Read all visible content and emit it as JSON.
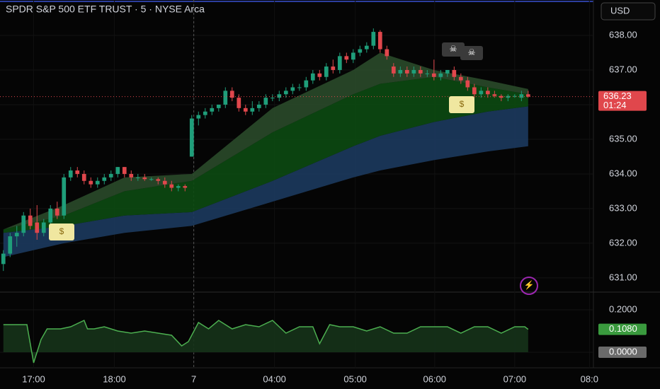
{
  "chart_data": {
    "type": "candlestick",
    "title": "SPDR S&P 500 ETF TRUST · 5 · NYSE Arca",
    "currency": "USD",
    "up_color": "#1f9e7a",
    "down_color": "#e0474c",
    "xlim": [
      -0.5,
      87.7
    ],
    "xticks": [
      {
        "value": 4.5,
        "label": "17:00"
      },
      {
        "value": 16.5,
        "label": "18:00"
      },
      {
        "value": 28.3,
        "label": "7"
      },
      {
        "value": 40.3,
        "label": "04:00"
      },
      {
        "value": 52.3,
        "label": "05:00"
      },
      {
        "value": 64.1,
        "label": "06:00"
      },
      {
        "value": 76,
        "label": "07:00"
      },
      {
        "value": 87.1,
        "label": "08:0"
      }
    ],
    "ylim": [
      630.59,
      639.02
    ],
    "yticks": [
      {
        "value": 638,
        "label": "638.00"
      },
      {
        "value": 637,
        "label": "637.00"
      },
      {
        "value": 636,
        "label": "636.00"
      },
      {
        "value": 635,
        "label": "635.00"
      },
      {
        "value": 634,
        "label": "634.00"
      },
      {
        "value": 633,
        "label": "633.00"
      },
      {
        "value": 632,
        "label": "632.00"
      },
      {
        "value": 631,
        "label": "631.00"
      }
    ],
    "last_price": {
      "value": 636.23,
      "label": "636.23"
    },
    "countdown": "01:24",
    "candles": [
      [
        631.4,
        631.8,
        631.2,
        631.7
      ],
      [
        631.7,
        632.3,
        631.6,
        632.2
      ],
      [
        632.2,
        632.5,
        631.9,
        632.3
      ],
      [
        632.3,
        632.9,
        632.2,
        632.8
      ],
      [
        632.8,
        633.0,
        632.4,
        632.5
      ],
      [
        632.6,
        633.1,
        632.1,
        632.3
      ],
      [
        632.3,
        632.7,
        632.2,
        632.6
      ],
      [
        632.6,
        633.1,
        632.5,
        633.0
      ],
      [
        633.0,
        633.2,
        632.7,
        632.8
      ],
      [
        632.8,
        634.0,
        632.7,
        633.9
      ],
      [
        633.9,
        634.2,
        633.8,
        634.1
      ],
      [
        634.1,
        634.2,
        633.9,
        634.0
      ],
      [
        634.0,
        634.1,
        633.7,
        633.8
      ],
      [
        633.8,
        633.9,
        633.6,
        633.7
      ],
      [
        633.7,
        633.9,
        633.6,
        633.8
      ],
      [
        633.8,
        634.0,
        633.7,
        633.9
      ],
      [
        633.9,
        634.1,
        633.8,
        634.0
      ],
      [
        634.0,
        634.2,
        633.9,
        634.2
      ],
      [
        634.2,
        634.2,
        633.9,
        634.0
      ],
      [
        634.0,
        634.1,
        633.8,
        633.9
      ],
      [
        633.9,
        634.0,
        633.8,
        633.9
      ],
      [
        633.9,
        634.0,
        633.8,
        633.85
      ],
      [
        633.85,
        633.9,
        633.8,
        633.85
      ],
      [
        633.85,
        633.9,
        633.7,
        633.8
      ],
      [
        633.8,
        633.9,
        633.6,
        633.7
      ],
      [
        633.7,
        633.8,
        633.5,
        633.6
      ],
      [
        633.6,
        633.7,
        633.5,
        633.65
      ],
      [
        633.65,
        633.7,
        633.5,
        633.6
      ],
      [
        634.5,
        635.7,
        634.5,
        635.6
      ],
      [
        635.6,
        635.8,
        635.4,
        635.7
      ],
      [
        635.7,
        635.9,
        635.6,
        635.8
      ],
      [
        635.8,
        636.0,
        635.7,
        635.9
      ],
      [
        635.9,
        636.0,
        635.8,
        636.0
      ],
      [
        636.0,
        636.5,
        635.9,
        636.4
      ],
      [
        636.4,
        636.5,
        636.1,
        636.2
      ],
      [
        636.2,
        636.3,
        635.8,
        635.9
      ],
      [
        635.9,
        636.0,
        635.7,
        635.8
      ],
      [
        635.8,
        636.1,
        635.7,
        635.9
      ],
      [
        635.9,
        636.1,
        635.8,
        636.0
      ],
      [
        636.0,
        636.3,
        635.9,
        636.2
      ],
      [
        636.2,
        636.3,
        636.1,
        636.2
      ],
      [
        636.2,
        636.4,
        636.1,
        636.3
      ],
      [
        636.3,
        636.5,
        636.2,
        636.4
      ],
      [
        636.4,
        636.6,
        636.3,
        636.5
      ],
      [
        636.5,
        636.6,
        636.4,
        636.5
      ],
      [
        636.5,
        636.8,
        636.4,
        636.7
      ],
      [
        636.7,
        637.0,
        636.6,
        636.9
      ],
      [
        636.9,
        637.0,
        636.7,
        636.8
      ],
      [
        636.8,
        637.2,
        636.7,
        637.1
      ],
      [
        637.1,
        637.3,
        636.9,
        637.0
      ],
      [
        637.0,
        637.5,
        636.9,
        637.4
      ],
      [
        637.4,
        637.5,
        637.2,
        637.3
      ],
      [
        637.3,
        637.6,
        637.2,
        637.5
      ],
      [
        637.5,
        637.7,
        637.4,
        637.6
      ],
      [
        637.6,
        637.8,
        637.5,
        637.7
      ],
      [
        637.7,
        638.2,
        637.6,
        638.1
      ],
      [
        638.1,
        638.15,
        637.5,
        637.6
      ],
      [
        637.6,
        637.7,
        637.3,
        637.4
      ],
      [
        637.1,
        637.2,
        636.8,
        636.9
      ],
      [
        636.9,
        637.1,
        636.8,
        637.0
      ],
      [
        637.0,
        637.1,
        636.8,
        636.9
      ],
      [
        636.9,
        637.1,
        636.8,
        637.0
      ],
      [
        637.0,
        637.1,
        636.8,
        636.9
      ],
      [
        636.9,
        637.0,
        636.8,
        636.9
      ],
      [
        636.9,
        637.3,
        636.7,
        636.8
      ],
      [
        636.8,
        637.0,
        636.7,
        636.9
      ],
      [
        636.9,
        637.0,
        636.8,
        637.0
      ],
      [
        637.0,
        637.1,
        636.7,
        636.8
      ],
      [
        636.8,
        636.9,
        636.6,
        636.7
      ],
      [
        636.7,
        636.8,
        636.4,
        636.5
      ],
      [
        636.5,
        636.6,
        636.2,
        636.3
      ],
      [
        636.3,
        636.5,
        636.2,
        636.4
      ],
      [
        636.4,
        636.5,
        636.2,
        636.3
      ],
      [
        636.3,
        636.4,
        636.2,
        636.25
      ],
      [
        636.25,
        636.3,
        636.1,
        636.2
      ],
      [
        636.2,
        636.3,
        636.1,
        636.25
      ],
      [
        636.25,
        636.3,
        636.2,
        636.25
      ],
      [
        636.2,
        636.4,
        636.1,
        636.3
      ],
      [
        636.3,
        636.4,
        636.2,
        636.23
      ]
    ],
    "band_x": [
      0,
      9,
      18,
      28,
      40,
      52,
      56,
      64,
      72,
      78
    ],
    "bands": [
      {
        "color": "#1c3a5e",
        "top": [
          632.3,
          632.5,
          632.8,
          632.9,
          633.8,
          634.8,
          635.1,
          635.5,
          635.8,
          635.95
        ],
        "bottom": [
          631.6,
          632.0,
          632.3,
          632.5,
          633.2,
          633.9,
          634.1,
          634.4,
          634.65,
          634.8
        ]
      },
      {
        "color": "#0c4a12",
        "top": [
          632.4,
          632.8,
          633.5,
          633.8,
          635.2,
          636.3,
          636.6,
          636.8,
          636.5,
          636.3
        ],
        "bottom": [
          632.3,
          632.5,
          632.8,
          632.9,
          633.8,
          634.8,
          635.1,
          635.5,
          635.8,
          635.95
        ]
      },
      {
        "color": "#2a4a2a",
        "top": [
          632.4,
          633.1,
          633.9,
          634.0,
          635.9,
          637.0,
          637.5,
          637.0,
          636.7,
          636.45
        ],
        "bottom": [
          632.4,
          632.8,
          633.5,
          633.8,
          635.2,
          636.3,
          636.6,
          636.8,
          636.5,
          636.3
        ]
      }
    ],
    "indicator": {
      "type": "area-line",
      "color": "#4caf50",
      "ylim": [
        -0.06,
        0.28
      ],
      "yticks": [
        {
          "value": 0.2,
          "label": "0.2000"
        },
        {
          "value": 0,
          "label": "0.0000"
        }
      ],
      "last": {
        "value": 0.108,
        "label": "0.1080"
      },
      "x": [
        0,
        3.5,
        4.5,
        5.6,
        6.5,
        8.5,
        10,
        12,
        12.5,
        13.5,
        15,
        17,
        19,
        21,
        23,
        25,
        26.5,
        27.5,
        29,
        30.5,
        32,
        34,
        36,
        38,
        40,
        42,
        44,
        46,
        47,
        48.5,
        50,
        52,
        54,
        56,
        58,
        60,
        62,
        64,
        66,
        68,
        70,
        72,
        74,
        76,
        77.5,
        78
      ],
      "values": [
        0.13,
        0.13,
        -0.05,
        0.06,
        0.11,
        0.11,
        0.12,
        0.15,
        0.11,
        0.11,
        0.12,
        0.1,
        0.09,
        0.1,
        0.09,
        0.08,
        0.03,
        0.05,
        0.14,
        0.11,
        0.15,
        0.11,
        0.13,
        0.12,
        0.15,
        0.09,
        0.12,
        0.12,
        0.04,
        0.13,
        0.12,
        0.12,
        0.1,
        0.12,
        0.09,
        0.09,
        0.12,
        0.12,
        0.12,
        0.09,
        0.12,
        0.12,
        0.09,
        0.12,
        0.12,
        0.108
      ]
    }
  }
}
